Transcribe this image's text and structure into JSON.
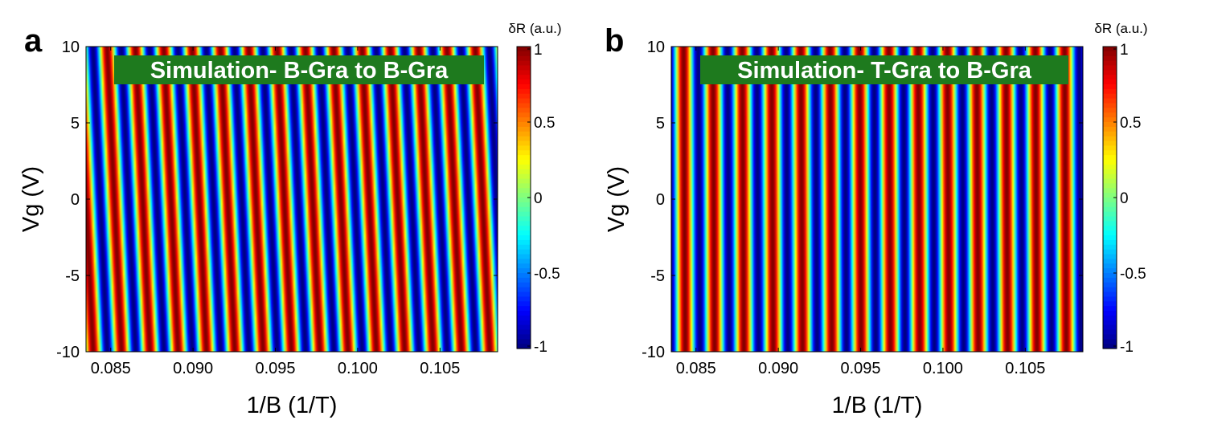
{
  "panels": [
    {
      "letter": "a",
      "title": "Simulation-  B-Gra to B-Gra",
      "xlabel": "1/B (1/T)",
      "ylabel": "Vg (V)",
      "colorbar_label": "δR (a.u.)"
    },
    {
      "letter": "b",
      "title": "Simulation-  T-Gra to B-Gra",
      "xlabel": "1/B (1/T)",
      "ylabel": "Vg (V)",
      "colorbar_label": "δR (a.u.)"
    }
  ],
  "colors": {
    "title_bg": "#1e7a1e",
    "title_text": "#ffffff"
  },
  "chart_data": [
    {
      "type": "heatmap",
      "title": "Simulation-  B-Gra to B-Gra",
      "xlabel": "1/B (1/T)",
      "ylabel": "Vg (V)",
      "xlim": [
        0.0835,
        0.1085
      ],
      "ylim": [
        -10,
        10
      ],
      "xticks": [
        0.085,
        0.09,
        0.095,
        0.1,
        0.105
      ],
      "xtick_labels": [
        "0.085",
        "0.090",
        "0.095",
        "0.100",
        "0.105"
      ],
      "yticks": [
        10,
        5,
        0,
        -5,
        -10
      ],
      "ytick_labels": [
        "10",
        "5",
        "0",
        "-5",
        "-10"
      ],
      "colorbar": {
        "label": "δR (a.u.)",
        "range": [
          -1,
          1
        ],
        "ticks": [
          1,
          0.5,
          0,
          -0.5,
          -1
        ],
        "tick_labels": [
          "1",
          "0.5",
          "0",
          "-0.5",
          "-1"
        ],
        "colormap": "jet"
      },
      "pattern": {
        "function": "cos",
        "period_1_over_B": 0.00172,
        "phase_shift_per_volt": 0.0255,
        "phase_offset": 0.0
      }
    },
    {
      "type": "heatmap",
      "title": "Simulation-  T-Gra to B-Gra",
      "xlabel": "1/B (1/T)",
      "ylabel": "Vg (V)",
      "xlim": [
        0.0835,
        0.1085
      ],
      "ylim": [
        -10,
        10
      ],
      "xticks": [
        0.085,
        0.09,
        0.095,
        0.1,
        0.105
      ],
      "xtick_labels": [
        "0.085",
        "0.090",
        "0.095",
        "0.100",
        "0.105"
      ],
      "yticks": [
        10,
        5,
        0,
        -5,
        -10
      ],
      "ytick_labels": [
        "10",
        "5",
        "0",
        "-5",
        "-10"
      ],
      "colorbar": {
        "label": "δR (a.u.)",
        "range": [
          -1,
          1
        ],
        "ticks": [
          1,
          0.5,
          0,
          -0.5,
          -1
        ],
        "tick_labels": [
          "1",
          "0.5",
          "0",
          "-0.5",
          "-1"
        ],
        "colormap": "jet"
      },
      "pattern": {
        "function": "cos",
        "period_1_over_B": 0.00178,
        "phase_shift_per_volt": 0.003,
        "phase_offset": 0.55
      }
    }
  ]
}
